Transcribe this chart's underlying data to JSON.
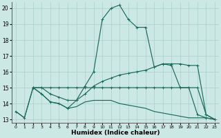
{
  "xlabel": "Humidex (Indice chaleur)",
  "xlim": [
    -0.5,
    23.5
  ],
  "ylim": [
    12.8,
    20.4
  ],
  "yticks": [
    13,
    14,
    15,
    16,
    17,
    18,
    19,
    20
  ],
  "xticks": [
    0,
    1,
    2,
    3,
    4,
    5,
    6,
    7,
    8,
    9,
    10,
    11,
    12,
    13,
    14,
    15,
    16,
    17,
    18,
    19,
    20,
    21,
    22,
    23
  ],
  "bg_color": "#cce8e4",
  "grid_color": "#aacfca",
  "line_color": "#1a6b5a",
  "line1_x": [
    0,
    1,
    2,
    3,
    4,
    5,
    6,
    7,
    8,
    9,
    10,
    11,
    12,
    13,
    14,
    15,
    16,
    17,
    18,
    19,
    20,
    21,
    22,
    23
  ],
  "line1_y": [
    13.5,
    13.1,
    15.0,
    14.6,
    14.1,
    14.0,
    13.7,
    14.2,
    15.1,
    16.0,
    19.3,
    20.0,
    20.2,
    19.3,
    18.8,
    18.8,
    16.3,
    16.5,
    16.4,
    15.0,
    15.0,
    13.3,
    13.1,
    13.0
  ],
  "line2_x": [
    2,
    3,
    4,
    5,
    6,
    7,
    8,
    9,
    10,
    11,
    12,
    13,
    14,
    15,
    16,
    17,
    18,
    19,
    20,
    21,
    22,
    23
  ],
  "line2_y": [
    15.0,
    15.0,
    15.0,
    15.0,
    15.0,
    15.0,
    15.0,
    15.0,
    15.0,
    15.0,
    15.0,
    15.0,
    15.0,
    15.0,
    15.0,
    15.0,
    15.0,
    15.0,
    15.0,
    15.0,
    13.3,
    13.0
  ],
  "line3_x": [
    2,
    3,
    4,
    5,
    6,
    7,
    8,
    9,
    10,
    11,
    12,
    13,
    14,
    15,
    16,
    17,
    18,
    19,
    20,
    21,
    22,
    23
  ],
  "line3_y": [
    15.0,
    15.0,
    14.6,
    14.4,
    14.2,
    14.2,
    14.6,
    15.1,
    15.4,
    15.6,
    15.8,
    15.9,
    16.0,
    16.1,
    16.3,
    16.5,
    16.5,
    16.5,
    16.4,
    16.4,
    13.3,
    13.0
  ],
  "line4_x": [
    0,
    1,
    2,
    3,
    4,
    5,
    6,
    7,
    8,
    9,
    10,
    11,
    12,
    13,
    14,
    15,
    16,
    17,
    18,
    19,
    20,
    21,
    22,
    23
  ],
  "line4_y": [
    13.5,
    13.1,
    15.0,
    14.6,
    14.1,
    14.0,
    13.7,
    13.8,
    14.1,
    14.2,
    14.2,
    14.2,
    14.0,
    13.9,
    13.8,
    13.7,
    13.5,
    13.4,
    13.3,
    13.2,
    13.1,
    13.1,
    13.1,
    13.0
  ]
}
